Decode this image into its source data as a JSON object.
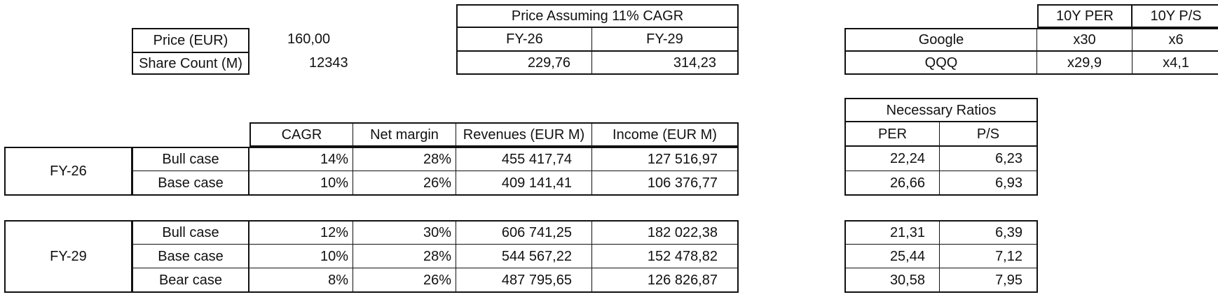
{
  "price_block": {
    "price_label": "Price (EUR)",
    "price_value": "160,00",
    "share_label": "Share Count (M)",
    "share_value": "12343"
  },
  "cagr_price": {
    "title": "Price Assuming 11% CAGR",
    "headers": [
      "FY-26",
      "FY-29"
    ],
    "values": [
      "229,76",
      "314,23"
    ]
  },
  "comparables": {
    "headers": [
      "10Y PER",
      "10Y P/S"
    ],
    "rows": [
      {
        "name": "Google",
        "per": "x30",
        "ps": "x6"
      },
      {
        "name": "QQQ",
        "per": "x29,9",
        "ps": "x4,1"
      }
    ]
  },
  "projections": {
    "headers": [
      "CAGR",
      "Net margin",
      "Revenues (EUR M)",
      "Income (EUR M)"
    ],
    "fy26": {
      "label": "FY-26",
      "rows": [
        {
          "case": "Bull case",
          "cagr": "14%",
          "margin": "28%",
          "revenues": "455 417,74",
          "income": "127 516,97"
        },
        {
          "case": "Base case",
          "cagr": "10%",
          "margin": "26%",
          "revenues": "409 141,41",
          "income": "106 376,77"
        }
      ]
    },
    "fy29": {
      "label": "FY-29",
      "rows": [
        {
          "case": "Bull case",
          "cagr": "12%",
          "margin": "30%",
          "revenues": "606 741,25",
          "income": "182 022,38"
        },
        {
          "case": "Base case",
          "cagr": "10%",
          "margin": "28%",
          "revenues": "544 567,22",
          "income": "152 478,82"
        },
        {
          "case": "Bear case",
          "cagr": "8%",
          "margin": "26%",
          "revenues": "487 795,65",
          "income": "126 826,87"
        }
      ]
    }
  },
  "ratios": {
    "title": "Necessary Ratios",
    "headers": [
      "PER",
      "P/S"
    ],
    "fy26": [
      {
        "per": "22,24",
        "ps": "6,23"
      },
      {
        "per": "26,66",
        "ps": "6,93"
      }
    ],
    "fy29": [
      {
        "per": "21,31",
        "ps": "6,39"
      },
      {
        "per": "25,44",
        "ps": "7,12"
      },
      {
        "per": "30,58",
        "ps": "7,95"
      }
    ]
  }
}
